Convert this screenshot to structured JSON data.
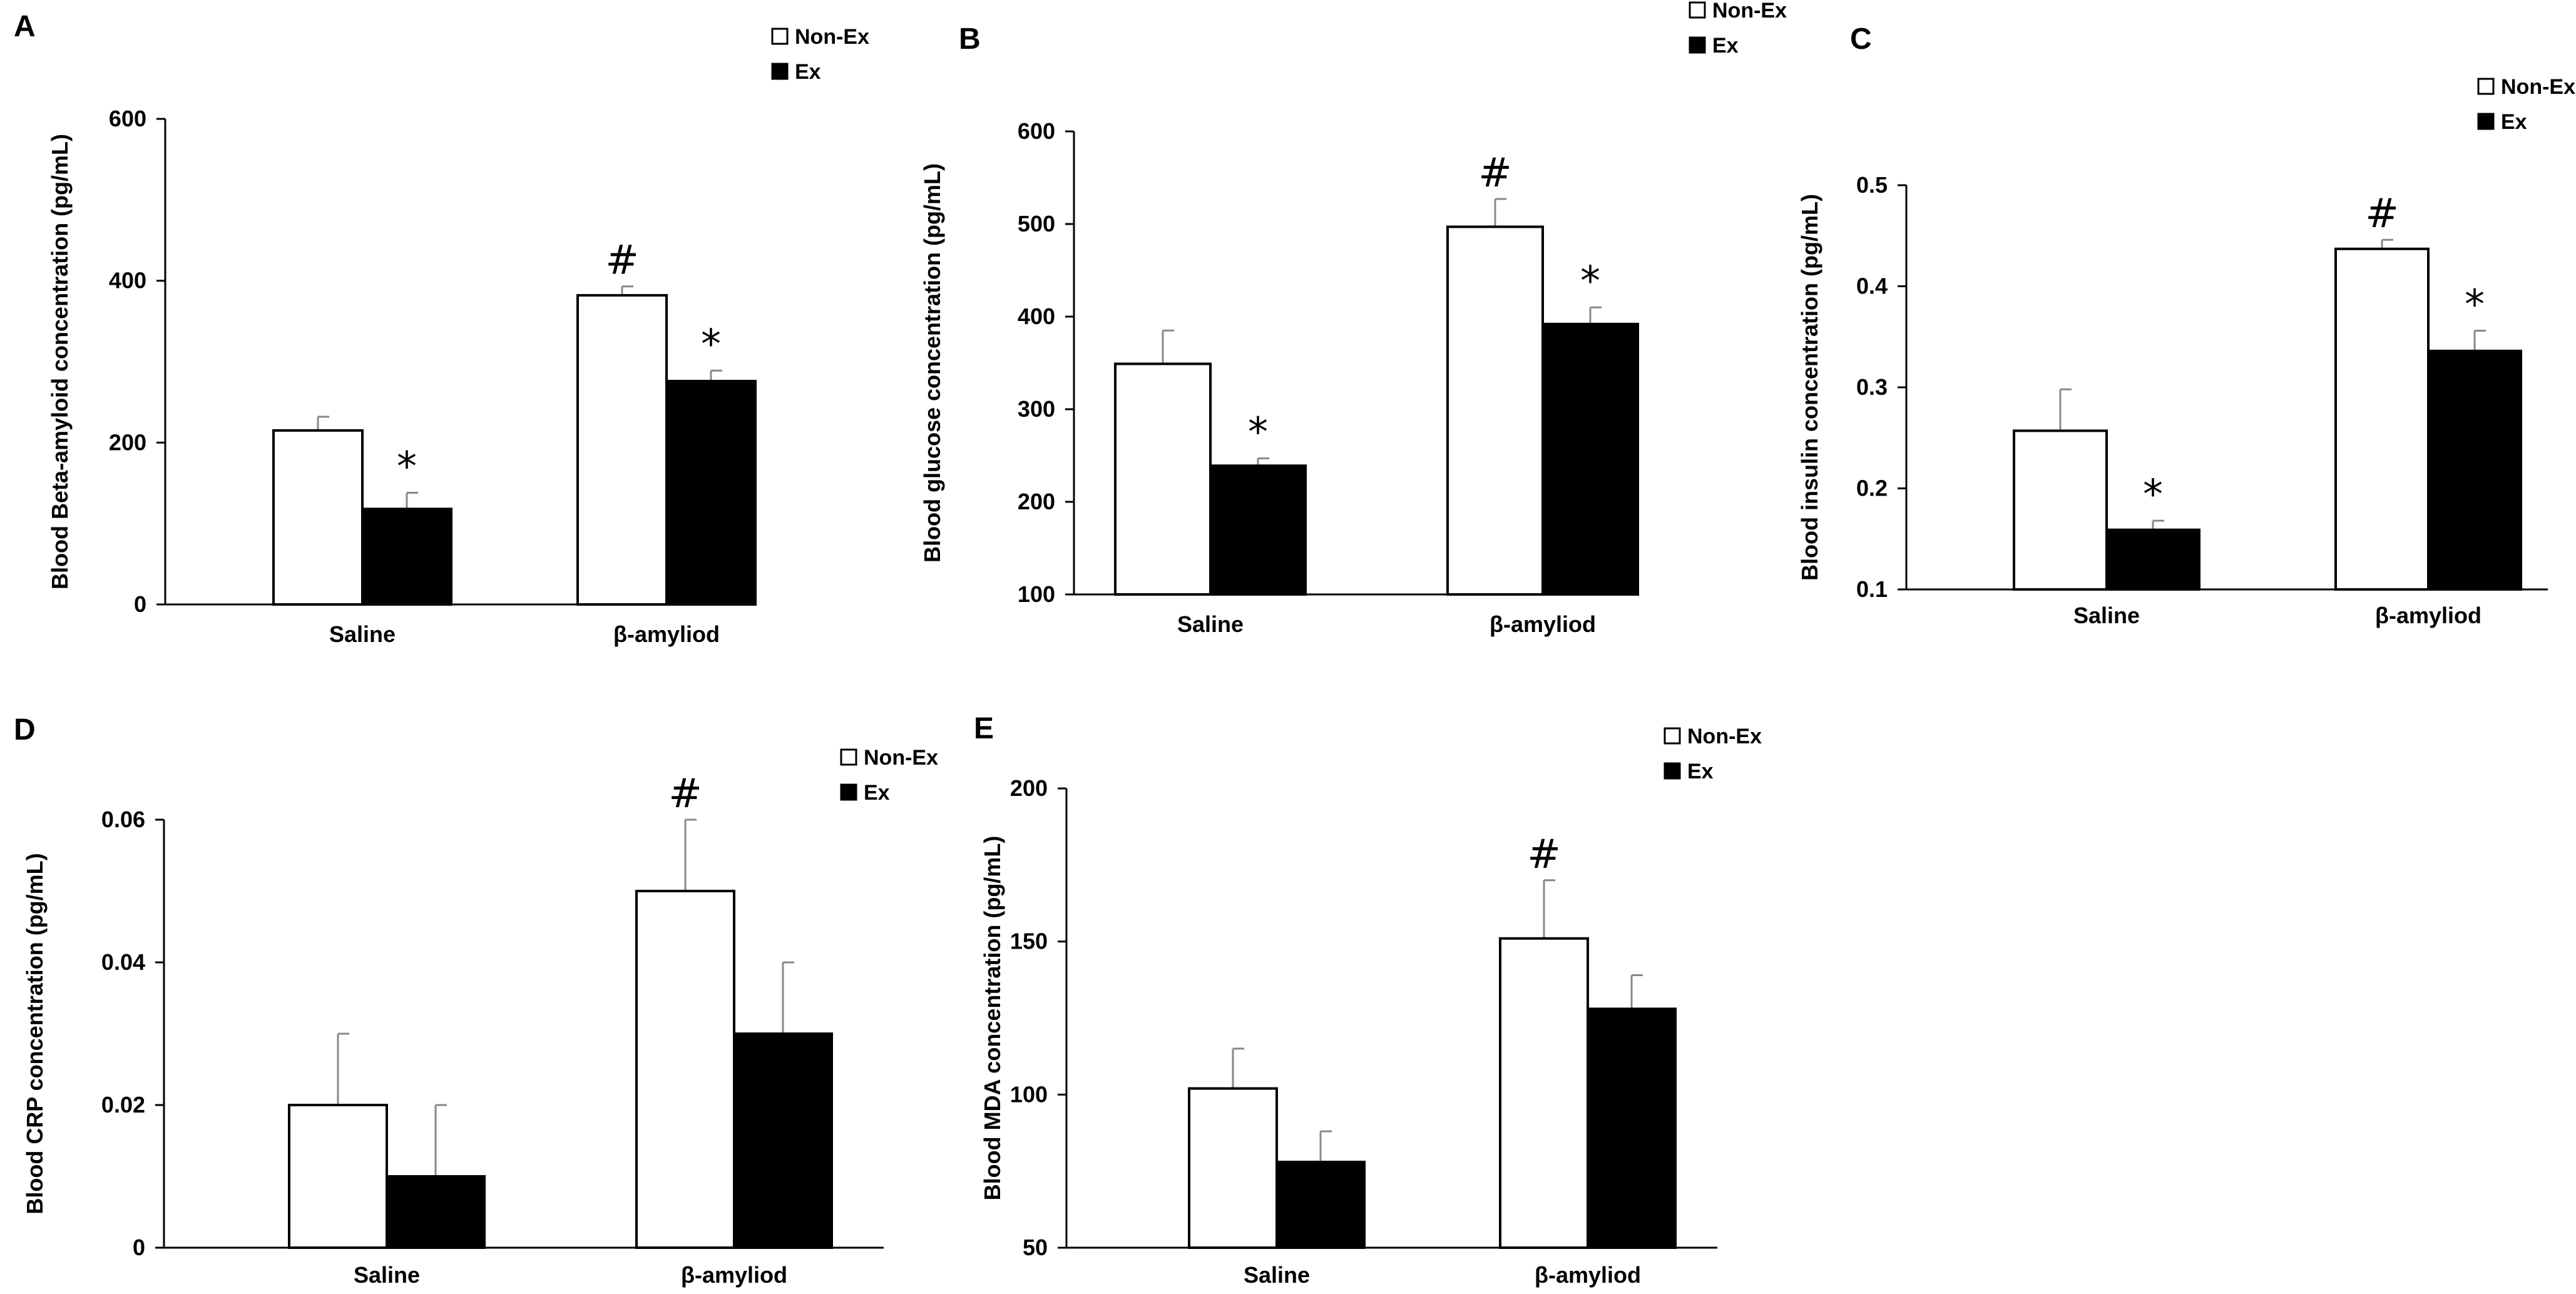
{
  "figure": {
    "legend_entries": [
      "Non-Ex",
      "Ex"
    ],
    "colors": {
      "non_ex": "#ffffff",
      "ex": "#000000",
      "axis": "#000000",
      "errorbar": "#888888"
    }
  },
  "chart_data": [
    {
      "panel": "A",
      "type": "bar",
      "title": "",
      "ylabel": "Blood Beta-amyloid concentration (pg/mL)",
      "xlabel": "",
      "categories": [
        "Saline",
        "β-amyliod"
      ],
      "ylim": [
        0,
        600
      ],
      "yticks": [
        0,
        200,
        400,
        600
      ],
      "tick_labels": [
        "0",
        "200",
        "400",
        "600"
      ],
      "legend": [
        "Non-Ex",
        "Ex"
      ],
      "series": [
        {
          "name": "Non-Ex",
          "values": [
            215,
            382
          ],
          "errors": [
            17,
            11
          ],
          "markers": [
            "",
            "#"
          ]
        },
        {
          "name": "Ex",
          "values": [
            118,
            276
          ],
          "errors": [
            20,
            13
          ],
          "markers": [
            "*",
            "*"
          ]
        }
      ]
    },
    {
      "panel": "B",
      "type": "bar",
      "title": "",
      "ylabel": "Blood glucose concentration (pg/mL)",
      "xlabel": "",
      "categories": [
        "Saline",
        "β-amyliod"
      ],
      "ylim": [
        100,
        600
      ],
      "yticks": [
        100,
        200,
        300,
        400,
        500,
        600
      ],
      "tick_labels": [
        "100",
        "200",
        "300",
        "400",
        "500",
        "600"
      ],
      "legend": [
        "Non-Ex",
        "Ex"
      ],
      "series": [
        {
          "name": "Non-Ex",
          "values": [
            349,
            497
          ],
          "errors": [
            36,
            30
          ],
          "markers": [
            "",
            "#"
          ]
        },
        {
          "name": "Ex",
          "values": [
            239,
            392
          ],
          "errors": [
            8,
            18
          ],
          "markers": [
            "*",
            "*"
          ]
        }
      ]
    },
    {
      "panel": "C",
      "type": "bar",
      "title": "",
      "ylabel": "Blood insulin concentration (pg/mL)",
      "xlabel": "",
      "categories": [
        "Saline",
        "β-amyliod"
      ],
      "ylim": [
        0.1,
        0.5
      ],
      "yticks": [
        0.1,
        0.2,
        0.3,
        0.4,
        0.5
      ],
      "tick_labels": [
        "0.1",
        "0.2",
        "0.3",
        "0.4",
        "0.5"
      ],
      "legend": [
        "Non-Ex",
        "Ex"
      ],
      "series": [
        {
          "name": "Non-Ex",
          "values": [
            0.257,
            0.437
          ],
          "errors": [
            0.041,
            0.009
          ],
          "markers": [
            "",
            "#"
          ]
        },
        {
          "name": "Ex",
          "values": [
            0.159,
            0.336
          ],
          "errors": [
            0.009,
            0.02
          ],
          "markers": [
            "*",
            "*"
          ]
        }
      ]
    },
    {
      "panel": "D",
      "type": "bar",
      "title": "",
      "ylabel": "Blood CRP concentration (pg/mL)",
      "xlabel": "",
      "categories": [
        "Saline",
        "β-amyliod"
      ],
      "ylim": [
        0,
        0.06
      ],
      "yticks": [
        0,
        0.02,
        0.04,
        0.06
      ],
      "tick_labels": [
        "0",
        "0.02",
        "0.04",
        "0.06"
      ],
      "legend": [
        "Non-Ex",
        "Ex"
      ],
      "series": [
        {
          "name": "Non-Ex",
          "values": [
            0.02,
            0.05
          ],
          "errors": [
            0.01,
            0.01
          ],
          "markers": [
            "",
            "#"
          ]
        },
        {
          "name": "Ex",
          "values": [
            0.01,
            0.03
          ],
          "errors": [
            0.01,
            0.01
          ],
          "markers": [
            "",
            ""
          ]
        }
      ]
    },
    {
      "panel": "E",
      "type": "bar",
      "title": "",
      "ylabel": "Blood MDA concentration (pg/mL)",
      "xlabel": "",
      "categories": [
        "Saline",
        "β-amyliod"
      ],
      "ylim": [
        50,
        200
      ],
      "yticks": [
        50,
        100,
        150,
        200
      ],
      "tick_labels": [
        "50",
        "100",
        "150",
        "200"
      ],
      "legend": [
        "Non-Ex",
        "Ex"
      ],
      "series": [
        {
          "name": "Non-Ex",
          "values": [
            102,
            151
          ],
          "errors": [
            13,
            19
          ],
          "markers": [
            "",
            "#"
          ]
        },
        {
          "name": "Ex",
          "values": [
            78,
            128
          ],
          "errors": [
            10,
            11
          ],
          "markers": [
            "",
            ""
          ]
        }
      ]
    }
  ]
}
